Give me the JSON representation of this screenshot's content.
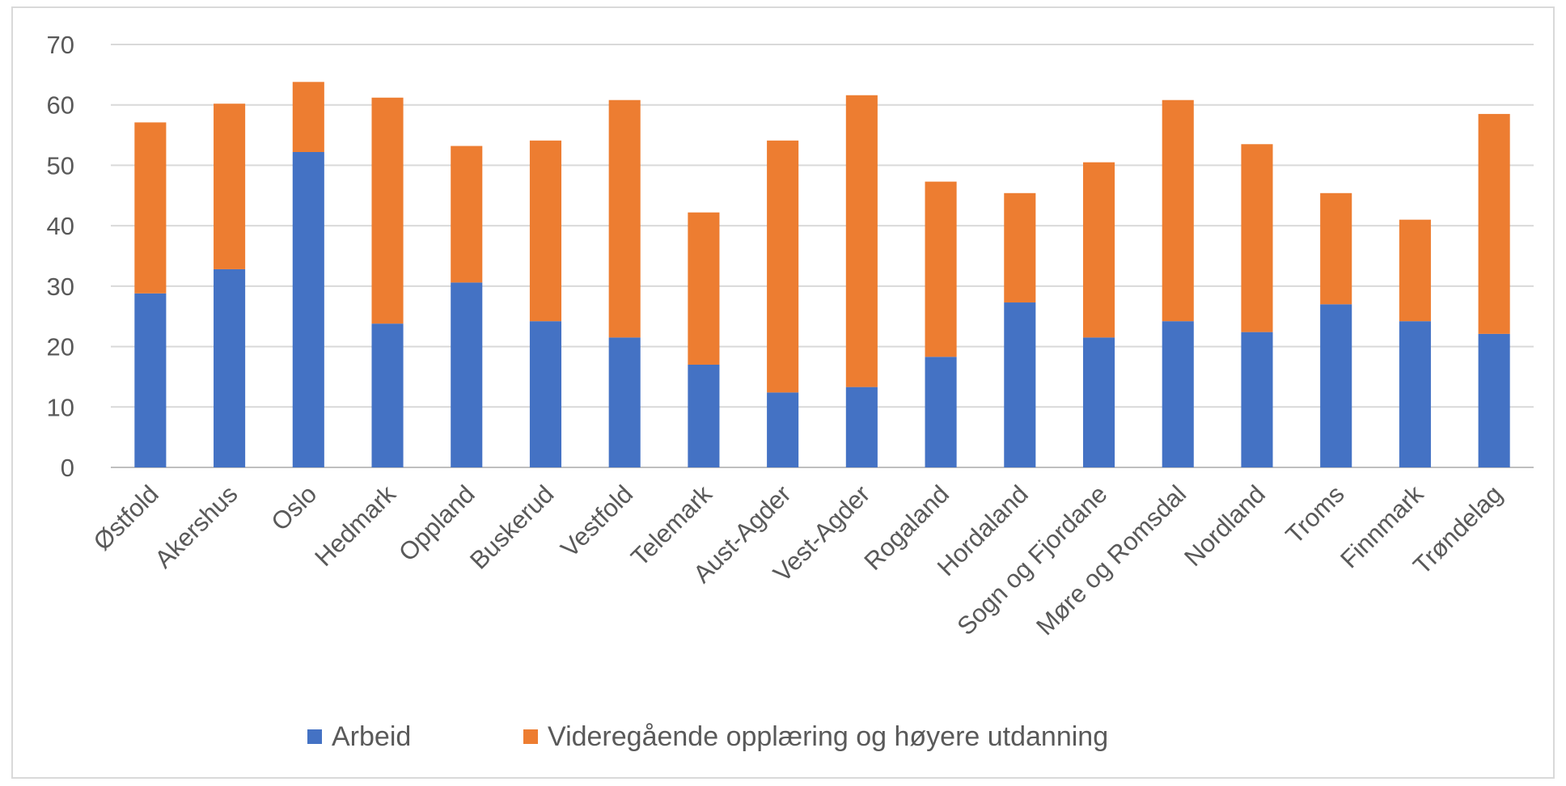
{
  "chart_data": {
    "type": "bar",
    "stacked": true,
    "title": "",
    "xlabel": "",
    "ylabel": "",
    "ylim": [
      0,
      70
    ],
    "yticks": [
      0,
      10,
      20,
      30,
      40,
      50,
      60,
      70
    ],
    "grid": true,
    "legend_position": "bottom",
    "categories": [
      "Østfold",
      "Akershus",
      "Oslo",
      "Hedmark",
      "Oppland",
      "Buskerud",
      "Vestfold",
      "Telemark",
      "Aust-Agder",
      "Vest-Agder",
      "Rogaland",
      "Hordaland",
      "Sogn og Fjordane",
      "Møre og Romsdal",
      "Nordland",
      "Troms",
      "Finnmark",
      "Trøndelag"
    ],
    "series": [
      {
        "name": "Arbeid",
        "color": "#4472c4",
        "values": [
          28.8,
          32.8,
          52.2,
          23.8,
          30.6,
          24.2,
          21.5,
          17.0,
          12.4,
          13.3,
          18.3,
          27.3,
          21.5,
          24.2,
          22.4,
          27.0,
          24.2,
          22.1
        ]
      },
      {
        "name": "Videregående opplæring og høyere utdanning",
        "color": "#ed7d31",
        "values": [
          28.3,
          27.4,
          11.6,
          37.4,
          22.6,
          29.9,
          39.3,
          25.2,
          41.7,
          48.3,
          29.0,
          18.1,
          29.0,
          36.6,
          31.1,
          18.4,
          16.8,
          36.4
        ]
      }
    ]
  }
}
